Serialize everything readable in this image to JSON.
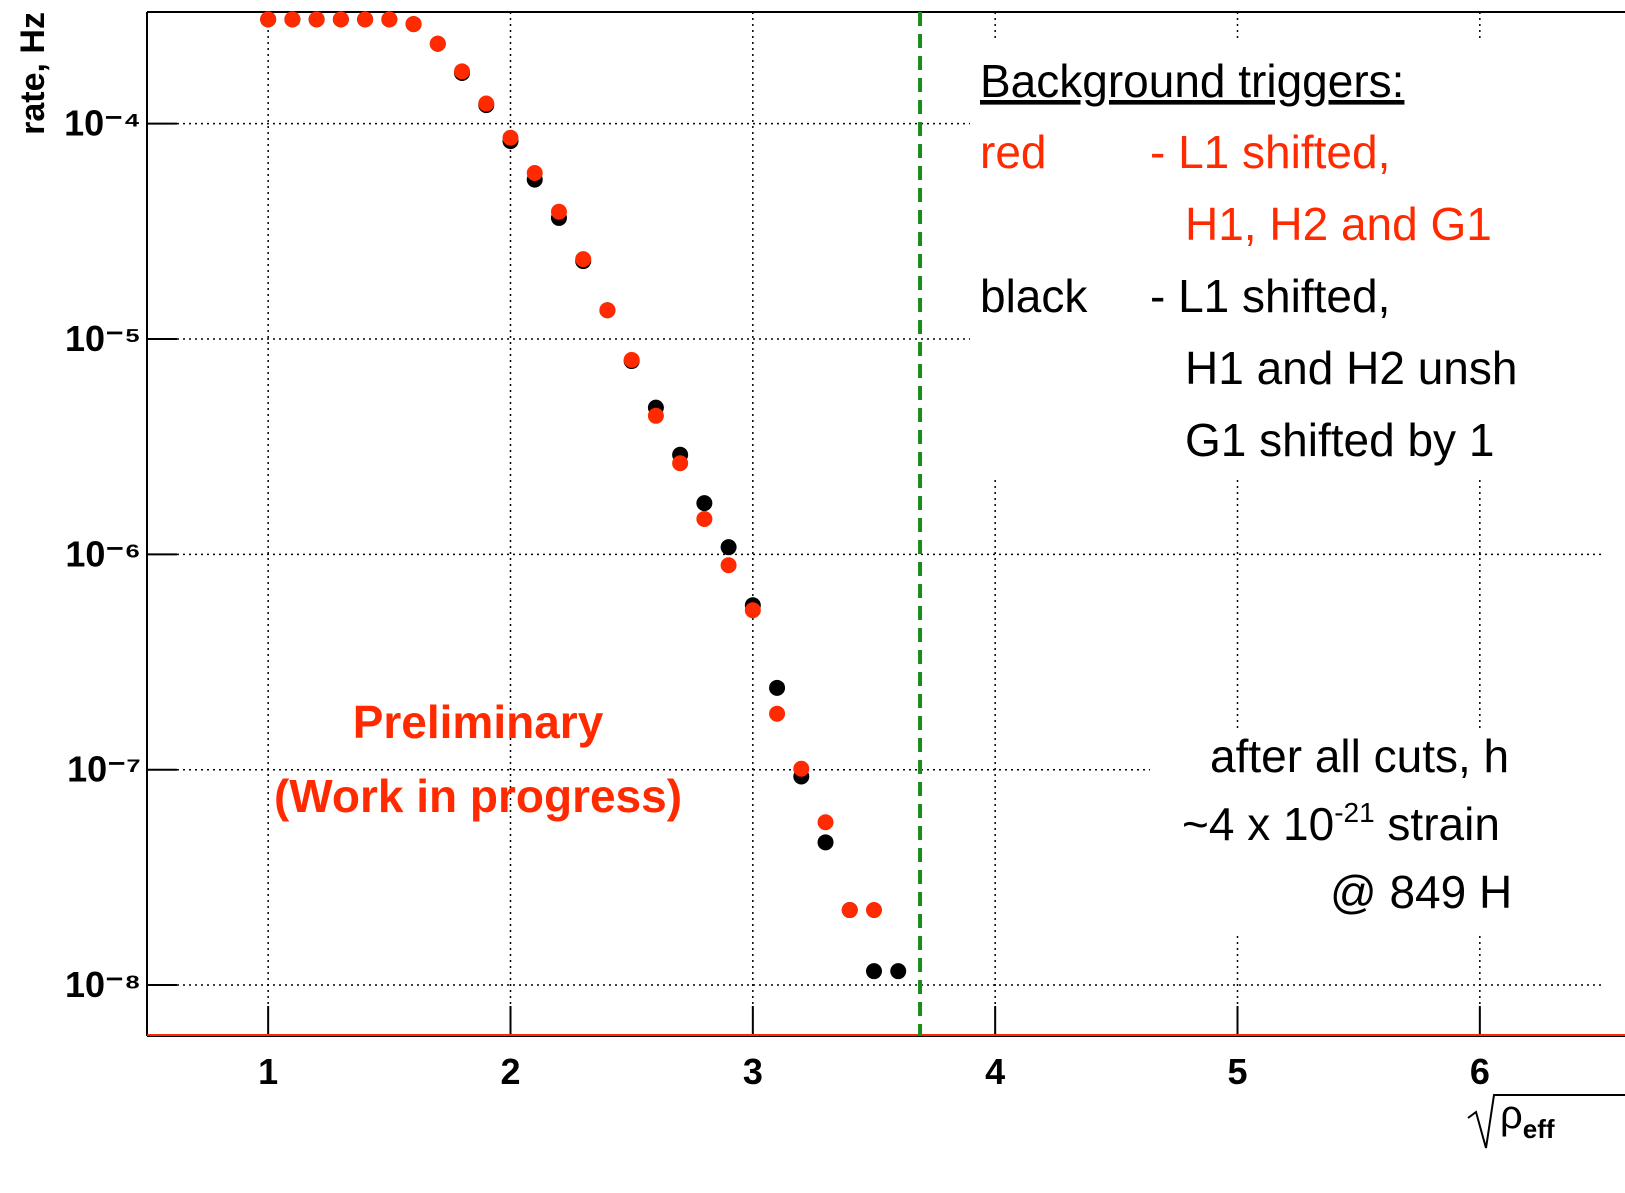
{
  "chart_data": {
    "type": "scatter",
    "y_label": "rate, Hz",
    "x_label": "ρ",
    "x_label_sub": "eff",
    "log_y": true,
    "grid": true,
    "xlim": [
      0.5,
      6.5
    ],
    "ylim": [
      5.8e-09,
      0.00033
    ],
    "xticks": [
      1,
      2,
      3,
      4,
      5,
      6
    ],
    "yticks": [
      {
        "value": 0.0001,
        "label": "10⁻⁴"
      },
      {
        "value": 1e-05,
        "label": "10⁻⁵"
      },
      {
        "value": 1e-06,
        "label": "10⁻⁶"
      },
      {
        "value": 1e-07,
        "label": "10⁻⁷"
      },
      {
        "value": 1e-08,
        "label": "10⁻⁸"
      }
    ],
    "threshold_x": 3.69,
    "x": [
      1.0,
      1.1,
      1.2,
      1.3,
      1.4,
      1.5,
      1.6,
      1.7,
      1.8,
      1.9,
      2.0,
      2.1,
      2.2,
      2.3,
      2.4,
      2.5,
      2.6,
      2.7,
      2.8,
      2.9,
      3.0,
      3.1,
      3.2,
      3.3,
      3.4,
      3.5,
      3.6
    ],
    "legend_title": "Background triggers:",
    "series": [
      {
        "name": "black",
        "color": "#000000",
        "description": [
          "- L1 shifted,",
          "H1 and H2 unsh",
          "G1 shifted by 1"
        ],
        "values": [
          0.000305,
          0.000305,
          0.000305,
          0.000305,
          0.000305,
          0.000305,
          0.00029,
          0.000235,
          0.000172,
          0.000122,
          8.3e-05,
          5.5e-05,
          3.65e-05,
          2.3e-05,
          1.36e-05,
          7.9e-06,
          4.8e-06,
          2.9e-06,
          1.73e-06,
          1.08e-06,
          5.8e-07,
          2.4e-07,
          9.3e-08,
          4.6e-08,
          2.23e-08,
          1.16e-08,
          1.16e-08
        ]
      },
      {
        "name": "red",
        "color": "#ff2a00",
        "description": [
          "- L1 shifted,",
          "H1, H2 and G1"
        ],
        "values": [
          0.000305,
          0.000305,
          0.000305,
          0.000305,
          0.000305,
          0.000305,
          0.00029,
          0.000235,
          0.000175,
          0.000124,
          8.6e-05,
          5.9e-05,
          3.9e-05,
          2.35e-05,
          1.36e-05,
          8e-06,
          4.4e-06,
          2.65e-06,
          1.46e-06,
          8.9e-07,
          5.5e-07,
          1.82e-07,
          1.01e-07,
          5.7e-08,
          2.23e-08,
          2.23e-08,
          null
        ]
      }
    ],
    "annotations": {
      "preliminary": [
        "Preliminary",
        "(Work in progress)"
      ],
      "note": [
        "after all cuts, h",
        "~4 x 10",
        "-21",
        " strain",
        "@ 849 H"
      ]
    }
  }
}
